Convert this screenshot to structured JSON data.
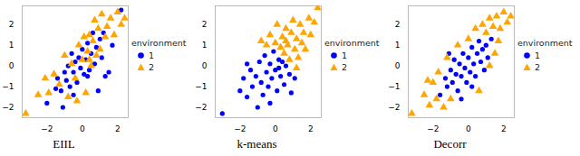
{
  "chart_data": [
    {
      "type": "scatter",
      "title": "EIIL",
      "legend_title": "environment",
      "xlim": [
        -3.4,
        2.6
      ],
      "ylim": [
        -2.5,
        2.9
      ],
      "xticks": [
        -2,
        0,
        2
      ],
      "yticks": [
        -2,
        -1,
        0,
        1,
        2
      ],
      "series": [
        {
          "name": "1",
          "color": "#0000ff",
          "marker": "circle",
          "x": [
            -2.0,
            -1.5,
            -1.4,
            -1.2,
            -1.0,
            -0.9,
            -0.8,
            -0.7,
            -0.6,
            -0.5,
            -0.4,
            -0.3,
            -0.2,
            -0.1,
            0.0,
            0.1,
            0.2,
            0.3,
            0.4,
            0.5,
            0.6,
            0.7,
            0.8,
            0.9,
            1.0,
            1.1,
            1.2,
            1.3,
            1.5,
            1.7,
            -1.1,
            0.3,
            -0.5,
            2.2
          ],
          "y": [
            -1.8,
            -1.1,
            -0.6,
            -1.2,
            -0.3,
            -0.7,
            0.0,
            -1.0,
            0.6,
            -0.3,
            0.2,
            -0.8,
            0.4,
            -0.1,
            0.8,
            -0.4,
            0.3,
            1.1,
            -0.2,
            0.6,
            1.6,
            0.1,
            0.9,
            -1.2,
            1.3,
            0.4,
            1.6,
            -0.5,
            -0.3,
            1.0,
            -2.0,
            -0.5,
            -1.4,
            2.7
          ]
        },
        {
          "name": "2",
          "color": "#ffa500",
          "marker": "triangle",
          "x": [
            -3.2,
            -2.5,
            -2.1,
            -1.9,
            -1.6,
            -1.3,
            -1.0,
            -0.8,
            -0.6,
            -0.4,
            -0.2,
            0.0,
            0.1,
            0.2,
            0.3,
            0.4,
            0.5,
            0.6,
            0.7,
            0.8,
            0.9,
            1.0,
            1.1,
            1.3,
            1.4,
            1.6,
            1.8,
            2.0,
            2.2,
            2.4,
            0.4,
            -0.3
          ],
          "y": [
            -2.3,
            -1.4,
            -0.6,
            -1.3,
            -0.4,
            -0.9,
            0.5,
            -1.5,
            0.1,
            -0.6,
            1.0,
            0.3,
            1.4,
            -1.3,
            0.7,
            1.5,
            0.0,
            1.2,
            2.2,
            0.5,
            1.8,
            0.8,
            2.5,
            1.4,
            1.9,
            2.3,
            1.5,
            2.6,
            2.0,
            2.3,
            0.3,
            -1.7
          ]
        }
      ]
    },
    {
      "type": "scatter",
      "title": "k-means",
      "legend_title": "environment",
      "xlim": [
        -3.4,
        2.6
      ],
      "ylim": [
        -2.5,
        2.9
      ],
      "xticks": [
        -2,
        0,
        2
      ],
      "yticks": [
        -2,
        -1,
        0,
        1,
        2
      ],
      "series": [
        {
          "name": "1",
          "color": "#0000ff",
          "marker": "circle",
          "x": [
            -3.0,
            -2.0,
            -1.8,
            -1.6,
            -1.4,
            -1.3,
            -1.1,
            -1.0,
            -0.9,
            -0.8,
            -0.7,
            -0.6,
            -0.5,
            -0.4,
            -0.3,
            -0.2,
            -0.1,
            0.0,
            0.1,
            0.2,
            0.3,
            0.4,
            0.5,
            0.6,
            0.8,
            0.9,
            1.1,
            -1.6,
            -0.3,
            0.2
          ],
          "y": [
            -2.3,
            -1.2,
            -0.6,
            -1.5,
            -0.2,
            -1.0,
            -0.5,
            -2.0,
            0.2,
            -0.8,
            -1.4,
            0.5,
            -0.3,
            -1.0,
            0.1,
            -0.6,
            0.7,
            -0.2,
            -1.2,
            0.3,
            -0.5,
            0.2,
            -0.9,
            0.0,
            -0.4,
            -1.3,
            -0.6,
            0.1,
            -1.8,
            -0.1
          ]
        },
        {
          "name": "2",
          "color": "#ffa500",
          "marker": "triangle",
          "x": [
            -0.8,
            -0.5,
            -0.3,
            0.0,
            0.1,
            0.3,
            0.4,
            0.5,
            0.6,
            0.7,
            0.8,
            0.9,
            1.0,
            1.1,
            1.2,
            1.3,
            1.4,
            1.5,
            1.6,
            1.7,
            1.9,
            2.0,
            2.2,
            2.4,
            1.2,
            0.6
          ],
          "y": [
            1.2,
            1.0,
            1.5,
            1.1,
            2.0,
            0.9,
            1.4,
            0.6,
            1.8,
            1.0,
            0.3,
            1.6,
            2.2,
            0.8,
            1.3,
            0.4,
            2.0,
            1.1,
            1.6,
            0.8,
            2.3,
            1.5,
            2.1,
            2.8,
            -0.1,
            1.2
          ]
        }
      ]
    },
    {
      "type": "scatter",
      "title": "Decorr",
      "legend_title": "environment",
      "xlim": [
        -3.4,
        2.6
      ],
      "ylim": [
        -2.5,
        2.9
      ],
      "xticks": [
        -2,
        0,
        2
      ],
      "yticks": [
        -2,
        -1,
        0,
        1,
        2
      ],
      "series": [
        {
          "name": "1",
          "color": "#0000ff",
          "marker": "circle",
          "x": [
            -1.6,
            -1.3,
            -1.2,
            -1.0,
            -0.9,
            -0.8,
            -0.7,
            -0.6,
            -0.5,
            -0.4,
            -0.3,
            -0.2,
            -0.1,
            0.0,
            0.1,
            0.2,
            0.3,
            0.4,
            0.5,
            0.6,
            0.7,
            0.8,
            0.9,
            1.0,
            1.1,
            1.3,
            -0.4,
            0.2,
            -1.1
          ],
          "y": [
            -1.4,
            -0.6,
            -1.0,
            -0.2,
            -0.8,
            0.3,
            -0.4,
            -1.2,
            0.1,
            -0.5,
            0.6,
            -0.1,
            -0.8,
            0.4,
            -0.3,
            0.9,
            0.1,
            -0.5,
            0.6,
            1.2,
            0.2,
            0.8,
            -0.2,
            1.0,
            0.4,
            1.3,
            -1.6,
            -1.0,
            0.6
          ]
        },
        {
          "name": "2",
          "color": "#ffa500",
          "marker": "triangle",
          "x": [
            -3.2,
            -2.5,
            -2.2,
            -2.0,
            -1.8,
            -1.7,
            -1.4,
            -1.2,
            -1.0,
            -0.6,
            0.0,
            0.4,
            0.6,
            0.8,
            1.0,
            1.2,
            1.2,
            1.4,
            1.5,
            1.6,
            1.7,
            1.8,
            2.0,
            2.2,
            2.4,
            -2.3
          ],
          "y": [
            -2.3,
            -1.4,
            -1.9,
            -0.8,
            -1.6,
            -0.3,
            -2.0,
            0.4,
            -1.6,
            1.0,
            1.3,
            1.8,
            -1.2,
            2.0,
            1.6,
            2.3,
            0.0,
            1.9,
            0.6,
            2.4,
            1.2,
            1.8,
            2.6,
            2.1,
            2.4,
            -0.7
          ]
        }
      ]
    }
  ]
}
